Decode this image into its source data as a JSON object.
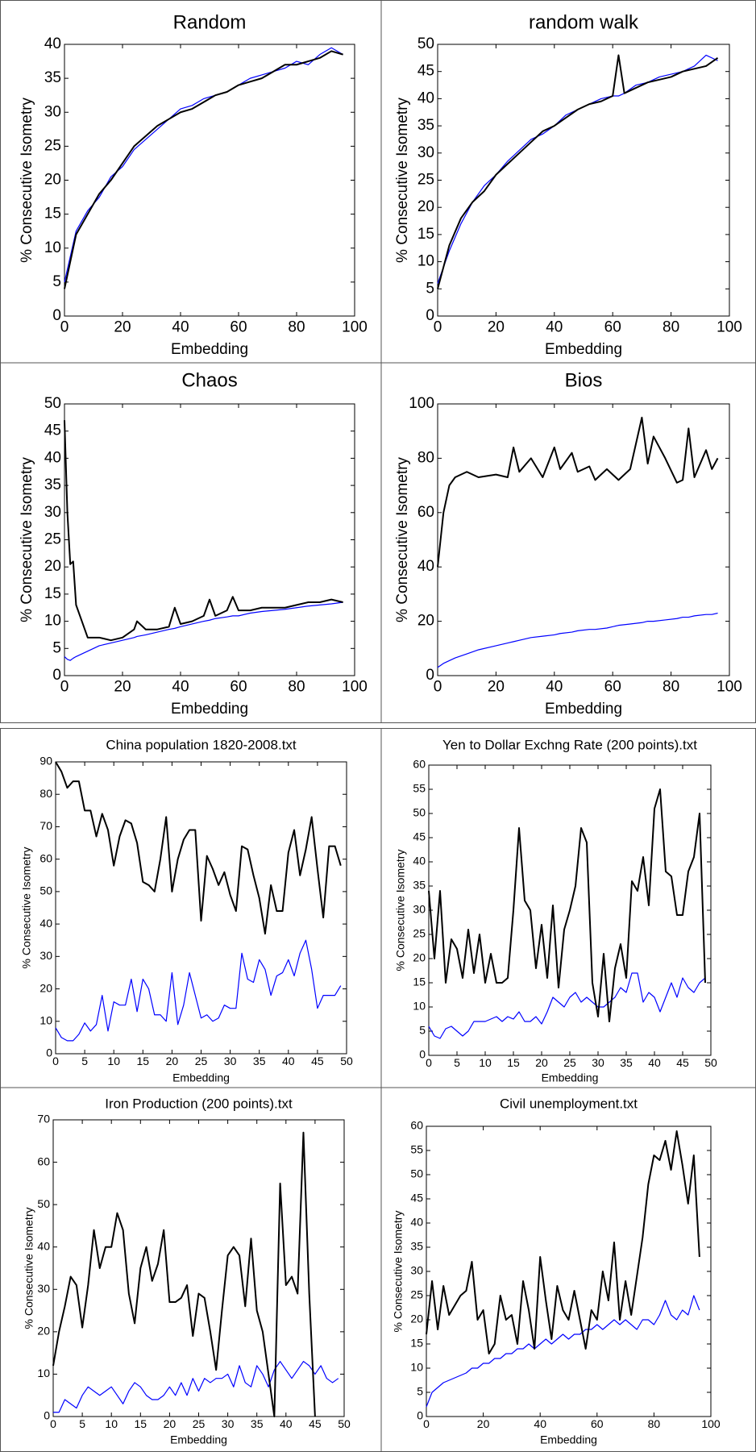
{
  "chart_data": [
    {
      "type": "line",
      "title": "Random",
      "xlabel": "Embedding",
      "ylabel": "% Consecutive Isometry",
      "x": [
        0,
        4,
        8,
        12,
        16,
        20,
        24,
        28,
        32,
        36,
        40,
        44,
        48,
        52,
        56,
        60,
        64,
        68,
        72,
        76,
        80,
        84,
        88,
        92,
        96
      ],
      "series": [
        {
          "color": "#000000",
          "values": [
            4,
            12,
            15,
            18,
            20,
            22.5,
            25,
            26.5,
            28,
            29,
            30,
            30.5,
            31.5,
            32.5,
            33,
            34,
            34.5,
            35,
            36,
            37,
            37,
            37.5,
            38,
            39,
            38.5
          ]
        },
        {
          "color": "#0000ff",
          "values": [
            5,
            12.5,
            15.5,
            17.5,
            20.5,
            22,
            24.5,
            26,
            27.5,
            29,
            30.5,
            31,
            32,
            32.5,
            33,
            34,
            35,
            35.5,
            36,
            36.5,
            37.5,
            37,
            38.5,
            39.5,
            38.5
          ]
        }
      ],
      "xlim": [
        0,
        100
      ],
      "xticks": [
        0,
        20,
        40,
        60,
        80,
        100
      ],
      "ylim": [
        0,
        40
      ],
      "yticks": [
        0,
        5,
        10,
        15,
        20,
        25,
        30,
        35,
        40
      ]
    },
    {
      "type": "line",
      "title": "random walk",
      "xlabel": "Embedding",
      "ylabel": "% Consecutive Isometry",
      "x": [
        0,
        4,
        8,
        12,
        16,
        20,
        24,
        28,
        32,
        36,
        40,
        44,
        48,
        52,
        56,
        60,
        62,
        64,
        68,
        72,
        76,
        80,
        84,
        88,
        92,
        96
      ],
      "series": [
        {
          "color": "#000000",
          "values": [
            5,
            13,
            18,
            21,
            23,
            26,
            28,
            30,
            32,
            34,
            35,
            36.5,
            38,
            39,
            39.5,
            40.5,
            48,
            41,
            42,
            43,
            43.5,
            44,
            45,
            45.5,
            46,
            47.5
          ]
        },
        {
          "color": "#0000ff",
          "values": [
            6,
            12,
            17,
            21,
            24,
            26,
            28.5,
            30.5,
            32.5,
            33.5,
            35,
            37,
            38,
            39,
            40,
            40.5,
            40.5,
            41,
            42.5,
            43,
            44,
            44.5,
            45,
            46,
            48,
            47
          ]
        }
      ],
      "xlim": [
        0,
        100
      ],
      "xticks": [
        0,
        20,
        40,
        60,
        80,
        100
      ],
      "ylim": [
        0,
        50
      ],
      "yticks": [
        0,
        5,
        10,
        15,
        20,
        25,
        30,
        35,
        40,
        45,
        50
      ]
    },
    {
      "type": "line",
      "title": "Chaos",
      "xlabel": "Embedding",
      "ylabel": "% Consecutive Isometry",
      "x": [
        0,
        1,
        2,
        3,
        4,
        6,
        8,
        12,
        16,
        20,
        24,
        25,
        28,
        32,
        36,
        38,
        40,
        44,
        48,
        50,
        52,
        56,
        58,
        60,
        64,
        68,
        72,
        76,
        80,
        84,
        88,
        92,
        96
      ],
      "series": [
        {
          "color": "#000000",
          "values": [
            47,
            30,
            20.5,
            21,
            13,
            10,
            7,
            7,
            6.5,
            7,
            8.5,
            10,
            8.5,
            8.5,
            9,
            12.5,
            9.5,
            10,
            11,
            14,
            11,
            12,
            14.5,
            12,
            12,
            12.5,
            12.5,
            12.5,
            13,
            13.5,
            13.5,
            14,
            13.5
          ]
        },
        {
          "color": "#0000ff",
          "values": [
            3.5,
            3,
            2.8,
            3.2,
            3.5,
            4,
            4.5,
            5.5,
            6,
            6.5,
            7,
            7.2,
            7.5,
            8,
            8.5,
            8.7,
            9,
            9.5,
            10,
            10.2,
            10.5,
            10.8,
            11,
            11,
            11.5,
            11.8,
            12,
            12.2,
            12.5,
            12.8,
            13,
            13.2,
            13.5
          ]
        }
      ],
      "xlim": [
        0,
        100
      ],
      "xticks": [
        0,
        20,
        40,
        60,
        80,
        100
      ],
      "ylim": [
        0,
        50
      ],
      "yticks": [
        0,
        5,
        10,
        15,
        20,
        25,
        30,
        35,
        40,
        45,
        50
      ]
    },
    {
      "type": "line",
      "title": "Bios",
      "xlabel": "Embedding",
      "ylabel": "% Consecutive Isometry",
      "x": [
        0,
        2,
        4,
        6,
        10,
        14,
        20,
        24,
        26,
        28,
        32,
        36,
        40,
        42,
        46,
        48,
        52,
        54,
        58,
        62,
        66,
        70,
        72,
        74,
        78,
        82,
        84,
        86,
        88,
        92,
        94,
        96
      ],
      "series": [
        {
          "color": "#000000",
          "values": [
            40,
            60,
            70,
            73,
            75,
            73,
            74,
            73,
            84,
            75,
            80,
            73,
            84,
            76,
            82,
            75,
            77,
            72,
            76,
            72,
            76,
            95,
            78,
            88,
            80,
            71,
            72,
            91,
            73,
            83,
            76,
            80
          ]
        },
        {
          "color": "#0000ff",
          "values": [
            3,
            4.5,
            5.5,
            6.5,
            8,
            9.5,
            11,
            12,
            12.5,
            13,
            14,
            14.5,
            15,
            15.5,
            16,
            16.5,
            17,
            17,
            17.5,
            18.5,
            19,
            19.5,
            20,
            20,
            20.5,
            21,
            21.5,
            21.5,
            22,
            22.5,
            22.5,
            23
          ]
        }
      ],
      "xlim": [
        0,
        100
      ],
      "xticks": [
        0,
        20,
        40,
        60,
        80,
        100
      ],
      "ylim": [
        0,
        100
      ],
      "yticks": [
        0,
        20,
        40,
        60,
        80,
        100
      ]
    },
    {
      "type": "line",
      "title": "China population 1820-2008.txt",
      "xlabel": "Embedding",
      "ylabel": "% Consecutive Isometry",
      "x": [
        0,
        1,
        2,
        3,
        4,
        5,
        6,
        7,
        8,
        9,
        10,
        11,
        12,
        13,
        14,
        15,
        16,
        17,
        18,
        19,
        20,
        21,
        22,
        23,
        24,
        25,
        26,
        27,
        28,
        29,
        30,
        31,
        32,
        33,
        34,
        35,
        36,
        37,
        38,
        39,
        40,
        41,
        42,
        43,
        44,
        45,
        46,
        47,
        48,
        49
      ],
      "series": [
        {
          "color": "#000000",
          "values": [
            90,
            87,
            82,
            84,
            84,
            75,
            75,
            67,
            74,
            69,
            58,
            67,
            72,
            71,
            65,
            53,
            52,
            50,
            60,
            73,
            50,
            60,
            66,
            69,
            69,
            41,
            61,
            57,
            52,
            56,
            49,
            44,
            64,
            63,
            55,
            48,
            37,
            52,
            44,
            44,
            62,
            69,
            55,
            63,
            73,
            57,
            42,
            64,
            64,
            58
          ]
        },
        {
          "color": "#0000ff",
          "values": [
            8,
            5,
            4,
            4,
            6,
            9.5,
            7,
            9,
            18,
            7,
            16,
            15,
            15,
            23,
            13,
            23,
            20,
            12,
            12,
            10,
            25,
            9,
            15,
            25,
            18,
            11,
            12,
            10,
            11,
            15,
            14,
            14,
            31,
            23,
            22,
            29,
            26,
            18,
            24,
            25,
            29,
            24,
            31,
            35,
            26,
            14,
            18,
            18,
            18,
            21
          ]
        }
      ],
      "xlim": [
        0,
        50
      ],
      "xticks": [
        0,
        5,
        10,
        15,
        20,
        25,
        30,
        35,
        40,
        45,
        50
      ],
      "ylim": [
        0,
        90
      ],
      "yticks": [
        0,
        10,
        20,
        30,
        40,
        50,
        60,
        70,
        80,
        90
      ]
    },
    {
      "type": "line",
      "title": "Yen to Dollar Exchng Rate (200 points).txt",
      "xlabel": "Embedding",
      "ylabel": "% Consecutive Isometry",
      "x": [
        0,
        1,
        2,
        3,
        4,
        5,
        6,
        7,
        8,
        9,
        10,
        11,
        12,
        13,
        14,
        15,
        16,
        17,
        18,
        19,
        20,
        21,
        22,
        23,
        24,
        25,
        26,
        27,
        28,
        29,
        30,
        31,
        32,
        33,
        34,
        35,
        36,
        37,
        38,
        39,
        40,
        41,
        42,
        43,
        44,
        45,
        46,
        47,
        48,
        49
      ],
      "series": [
        {
          "color": "#000000",
          "values": [
            34,
            20,
            34,
            15,
            24,
            22,
            16,
            26,
            17,
            25,
            15,
            21,
            15,
            15,
            16,
            30,
            47,
            32,
            30,
            18,
            27,
            16,
            31,
            14,
            26,
            30,
            35,
            47,
            44,
            15,
            8,
            21,
            7,
            18,
            23,
            16,
            36,
            34,
            41,
            31,
            51,
            55,
            38,
            37,
            29,
            29,
            38,
            41,
            50,
            15
          ]
        },
        {
          "color": "#0000ff",
          "values": [
            6,
            4,
            3.5,
            5.5,
            6,
            5,
            4,
            5,
            7,
            7,
            7,
            7.5,
            8,
            7,
            8,
            7.5,
            9,
            7,
            7,
            8,
            6.5,
            9,
            12,
            11,
            10,
            12,
            13,
            11,
            12,
            11,
            10,
            10,
            11,
            12,
            14,
            13,
            17,
            17,
            11,
            13,
            12,
            9,
            12,
            15,
            12,
            16,
            14,
            13,
            15,
            16
          ]
        }
      ],
      "xlim": [
        0,
        50
      ],
      "xticks": [
        0,
        5,
        10,
        15,
        20,
        25,
        30,
        35,
        40,
        45,
        50
      ],
      "ylim": [
        0,
        60
      ],
      "yticks": [
        0,
        5,
        10,
        15,
        20,
        25,
        30,
        35,
        40,
        45,
        50,
        55,
        60
      ]
    },
    {
      "type": "line",
      "title": "Iron Production (200 points).txt",
      "xlabel": "Embedding",
      "ylabel": "% Consecutive Isometry",
      "x": [
        0,
        1,
        2,
        3,
        4,
        5,
        6,
        7,
        8,
        9,
        10,
        11,
        12,
        13,
        14,
        15,
        16,
        17,
        18,
        19,
        20,
        21,
        22,
        23,
        24,
        25,
        26,
        27,
        28,
        29,
        30,
        31,
        32,
        33,
        34,
        35,
        36,
        37,
        38,
        39,
        40,
        41,
        42,
        43,
        44,
        45,
        46,
        47,
        48,
        49
      ],
      "series": [
        {
          "color": "#000000",
          "values": [
            12,
            20,
            26,
            33,
            31,
            21,
            31,
            44,
            35,
            40,
            40,
            48,
            44,
            29,
            22,
            35,
            40,
            32,
            36,
            44,
            27,
            27,
            28,
            31,
            19,
            29,
            28,
            20,
            11,
            25,
            38,
            40,
            38,
            26,
            42,
            25,
            20,
            10,
            0,
            55,
            31,
            33,
            29,
            67,
            29,
            0,
            null,
            null,
            null,
            null
          ]
        },
        {
          "color": "#0000ff",
          "values": [
            1,
            1,
            4,
            3,
            2,
            5,
            7,
            6,
            5,
            6,
            7,
            5,
            3,
            6,
            8,
            7,
            5,
            4,
            4,
            5,
            7,
            5,
            8,
            5,
            9,
            6,
            9,
            8,
            9,
            9,
            10,
            7,
            12,
            8,
            7,
            12,
            10,
            7,
            11,
            13,
            11,
            9,
            11,
            13,
            12,
            10,
            12,
            9,
            8,
            9
          ]
        }
      ],
      "xlim": [
        0,
        50
      ],
      "xticks": [
        0,
        5,
        10,
        15,
        20,
        25,
        30,
        35,
        40,
        45,
        50
      ],
      "ylim": [
        0,
        70
      ],
      "yticks": [
        0,
        10,
        20,
        30,
        40,
        50,
        60,
        70
      ]
    },
    {
      "type": "line",
      "title": "Civil unemployment.txt",
      "xlabel": "Embedding",
      "ylabel": "% Consecutive Isometry",
      "x": [
        0,
        2,
        4,
        6,
        8,
        10,
        12,
        14,
        16,
        18,
        20,
        22,
        24,
        26,
        28,
        30,
        32,
        34,
        36,
        38,
        40,
        42,
        44,
        46,
        48,
        50,
        52,
        54,
        56,
        58,
        60,
        62,
        64,
        66,
        68,
        70,
        72,
        74,
        76,
        78,
        80,
        82,
        84,
        86,
        88,
        90,
        92,
        94,
        96
      ],
      "series": [
        {
          "color": "#000000",
          "values": [
            17,
            28,
            18,
            27,
            21,
            23,
            25,
            26,
            32,
            20,
            22,
            13,
            15,
            25,
            20,
            21,
            15,
            28,
            22,
            14,
            33,
            24,
            16,
            27,
            22,
            20,
            26,
            20,
            14,
            22,
            20,
            30,
            24,
            36,
            20,
            28,
            21,
            29,
            37,
            48,
            54,
            53,
            57,
            51,
            59,
            52,
            44,
            54,
            33
          ]
        },
        {
          "color": "#0000ff",
          "values": [
            2,
            5,
            6,
            7,
            7.5,
            8,
            8.5,
            9,
            10,
            10,
            11,
            11,
            12,
            12,
            13,
            13,
            14,
            14,
            15,
            14,
            15,
            16,
            15,
            16,
            17,
            16,
            17,
            17,
            18,
            18,
            19,
            18,
            19,
            20,
            19,
            20,
            19,
            18,
            20,
            20,
            19,
            21,
            24,
            21,
            20,
            22,
            21,
            25,
            22
          ]
        }
      ],
      "xlim": [
        0,
        100
      ],
      "xticks": [
        0,
        20,
        40,
        60,
        80,
        100
      ],
      "ylim": [
        0,
        60
      ],
      "yticks": [
        0,
        5,
        10,
        15,
        20,
        25,
        30,
        35,
        40,
        45,
        50,
        55,
        60
      ]
    }
  ]
}
